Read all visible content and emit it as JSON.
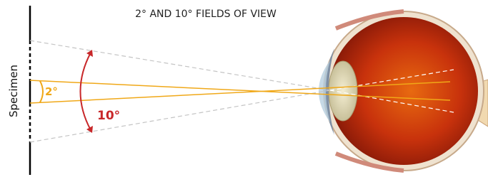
{
  "title": "2° AND 10° FIELDS OF VIEW",
  "specimen_label": "Specimen",
  "angles": {
    "narrow": "2°",
    "wide": "10°"
  }
}
